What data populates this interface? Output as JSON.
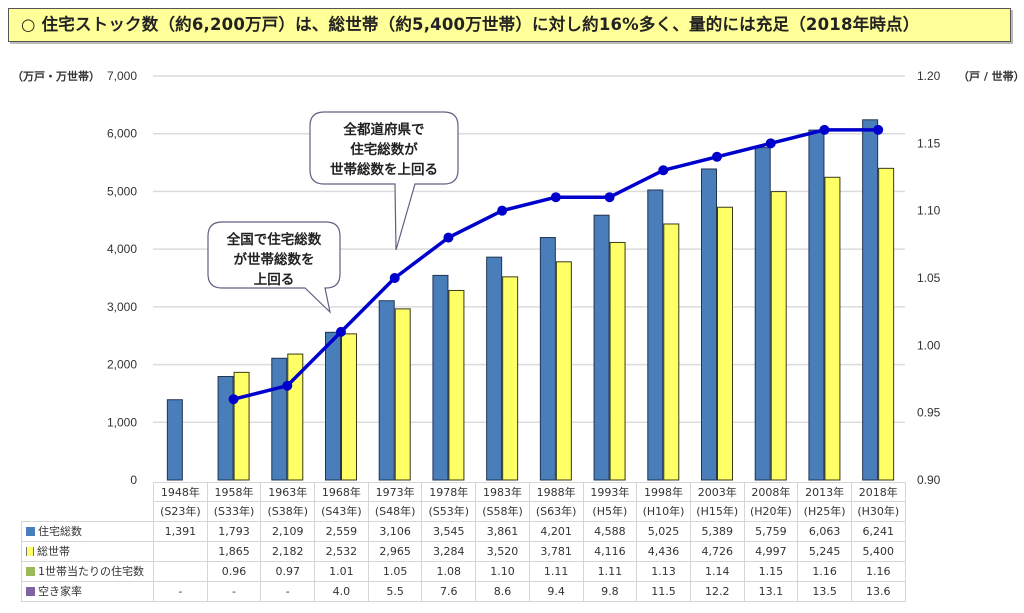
{
  "title": "○ 住宅ストック数（約6,200万戸）は、総世帯（約5,400万世帯）に対し約16%多く、量的には充足（2018年時点）",
  "chart_data": {
    "type": "bar",
    "title": "住宅ストック数（約6,200万戸）は、総世帯（約5,400万世帯）に対し約16%多く、量的には充足（2018年時点）",
    "categories": [
      "1948年",
      "1958年",
      "1963年",
      "1968年",
      "1973年",
      "1978年",
      "1983年",
      "1988年",
      "1993年",
      "1998年",
      "2003年",
      "2008年",
      "2013年",
      "2018年"
    ],
    "categories_era": [
      "(S23年)",
      "(S33年)",
      "(S38年)",
      "(S43年)",
      "(S48年)",
      "(S53年)",
      "(S58年)",
      "(S63年)",
      "(H5年)",
      "(H10年)",
      "(H15年)",
      "(H20年)",
      "(H25年)",
      "(H30年)"
    ],
    "ylabel": "（万戸・万世帯）",
    "ylabel_right": "（戸 / 世帯）",
    "ylim": [
      0,
      7000
    ],
    "yticks": [
      0,
      1000,
      2000,
      3000,
      4000,
      5000,
      6000,
      7000
    ],
    "yticks_labels": [
      "0",
      "1,000",
      "2,000",
      "3,000",
      "4,000",
      "5,000",
      "6,000",
      "7,000"
    ],
    "ylim_right": [
      0.9,
      1.2
    ],
    "yticks_right": [
      "0.90",
      "0.95",
      "1.00",
      "1.05",
      "1.10",
      "1.15",
      "1.20"
    ],
    "yticks_right_values": [
      0.9,
      0.95,
      1.0,
      1.05,
      1.1,
      1.15,
      1.2
    ],
    "grid": true,
    "series": [
      {
        "name": "住宅総数",
        "type": "bar",
        "axis": "left",
        "color": "#4a7ebb",
        "values": [
          1391,
          1793,
          2109,
          2559,
          3106,
          3545,
          3861,
          4201,
          4588,
          5025,
          5389,
          5759,
          6063,
          6241
        ]
      },
      {
        "name": "総世帯",
        "type": "bar",
        "axis": "left",
        "color": "#ffff66",
        "values": [
          null,
          1865,
          2182,
          2532,
          2965,
          3284,
          3520,
          3781,
          4116,
          4436,
          4726,
          4997,
          5245,
          5400
        ]
      },
      {
        "name": "1世帯当たりの住宅数",
        "type": "line",
        "axis": "right",
        "color": "#0000cc",
        "values": [
          null,
          0.96,
          0.97,
          1.01,
          1.05,
          1.08,
          1.1,
          1.11,
          1.11,
          1.13,
          1.14,
          1.15,
          1.16,
          1.16
        ]
      },
      {
        "name": "空き家率",
        "type": "table-only",
        "color": "#8064a2",
        "values": [
          null,
          null,
          null,
          4.0,
          5.5,
          7.6,
          8.6,
          9.4,
          9.8,
          11.5,
          12.2,
          13.1,
          13.5,
          13.6
        ]
      }
    ],
    "annotations": [
      {
        "text_lines": [
          "全国で住宅総数",
          "が世帯総数を",
          "上回る"
        ],
        "points_to": "1968年"
      },
      {
        "text_lines": [
          "全都道府県で",
          "住宅総数が",
          "世帯総数を上回る"
        ],
        "points_to": "1973年"
      }
    ],
    "table": {
      "rows": [
        {
          "label": "住宅総数",
          "marker": "blue",
          "cells": [
            "1,391",
            "1,793",
            "2,109",
            "2,559",
            "3,106",
            "3,545",
            "3,861",
            "4,201",
            "4,588",
            "5,025",
            "5,389",
            "5,759",
            "6,063",
            "6,241"
          ]
        },
        {
          "label": "総世帯",
          "marker": "yellow",
          "cells": [
            "",
            "1,865",
            "2,182",
            "2,532",
            "2,965",
            "3,284",
            "3,520",
            "3,781",
            "4,116",
            "4,436",
            "4,726",
            "4,997",
            "5,245",
            "5,400"
          ]
        },
        {
          "label": "1世帯当たりの住宅数",
          "marker": "green",
          "cells": [
            "",
            "0.96",
            "0.97",
            "1.01",
            "1.05",
            "1.08",
            "1.10",
            "1.11",
            "1.11",
            "1.13",
            "1.14",
            "1.15",
            "1.16",
            "1.16"
          ]
        },
        {
          "label": "空き家率",
          "marker": "purple",
          "cells": [
            "-",
            "-",
            "-",
            "4.0",
            "5.5",
            "7.6",
            "8.6",
            "9.4",
            "9.8",
            "11.5",
            "12.2",
            "13.1",
            "13.5",
            "13.6"
          ]
        }
      ]
    }
  }
}
